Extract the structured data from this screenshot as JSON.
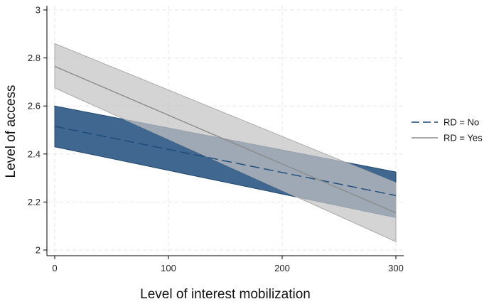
{
  "chart_data": {
    "type": "line",
    "title": "",
    "xlabel": "Level of interest mobilization",
    "ylabel": "Level of access",
    "xlim": [
      0,
      300
    ],
    "ylim": [
      2,
      3
    ],
    "x_ticks": [
      0,
      100,
      200,
      300
    ],
    "y_ticks": [
      2,
      2.2,
      2.4,
      2.6,
      2.8,
      3
    ],
    "x_tick_labels": [
      "0",
      "100",
      "200",
      "300"
    ],
    "y_tick_labels": [
      "2",
      "2.2",
      "2.4",
      "2.6",
      "2.8",
      "3"
    ],
    "grid": true,
    "legend_position": "right",
    "x": [
      0,
      300
    ],
    "series": [
      {
        "name": "RD = No",
        "values": [
          2.515,
          2.227
        ],
        "ci_lower": [
          2.43,
          2.135
        ],
        "ci_upper": [
          2.6,
          2.325
        ],
        "line_style": "dashed",
        "line_color": "#1a4a7a",
        "band_color": "#2f5a85"
      },
      {
        "name": "RD = Yes",
        "values": [
          2.765,
          2.155
        ],
        "ci_lower": [
          2.675,
          2.035
        ],
        "ci_upper": [
          2.86,
          2.28
        ],
        "line_style": "solid",
        "line_color": "#8c8c8c",
        "band_color": "#c4c4c4"
      }
    ]
  }
}
